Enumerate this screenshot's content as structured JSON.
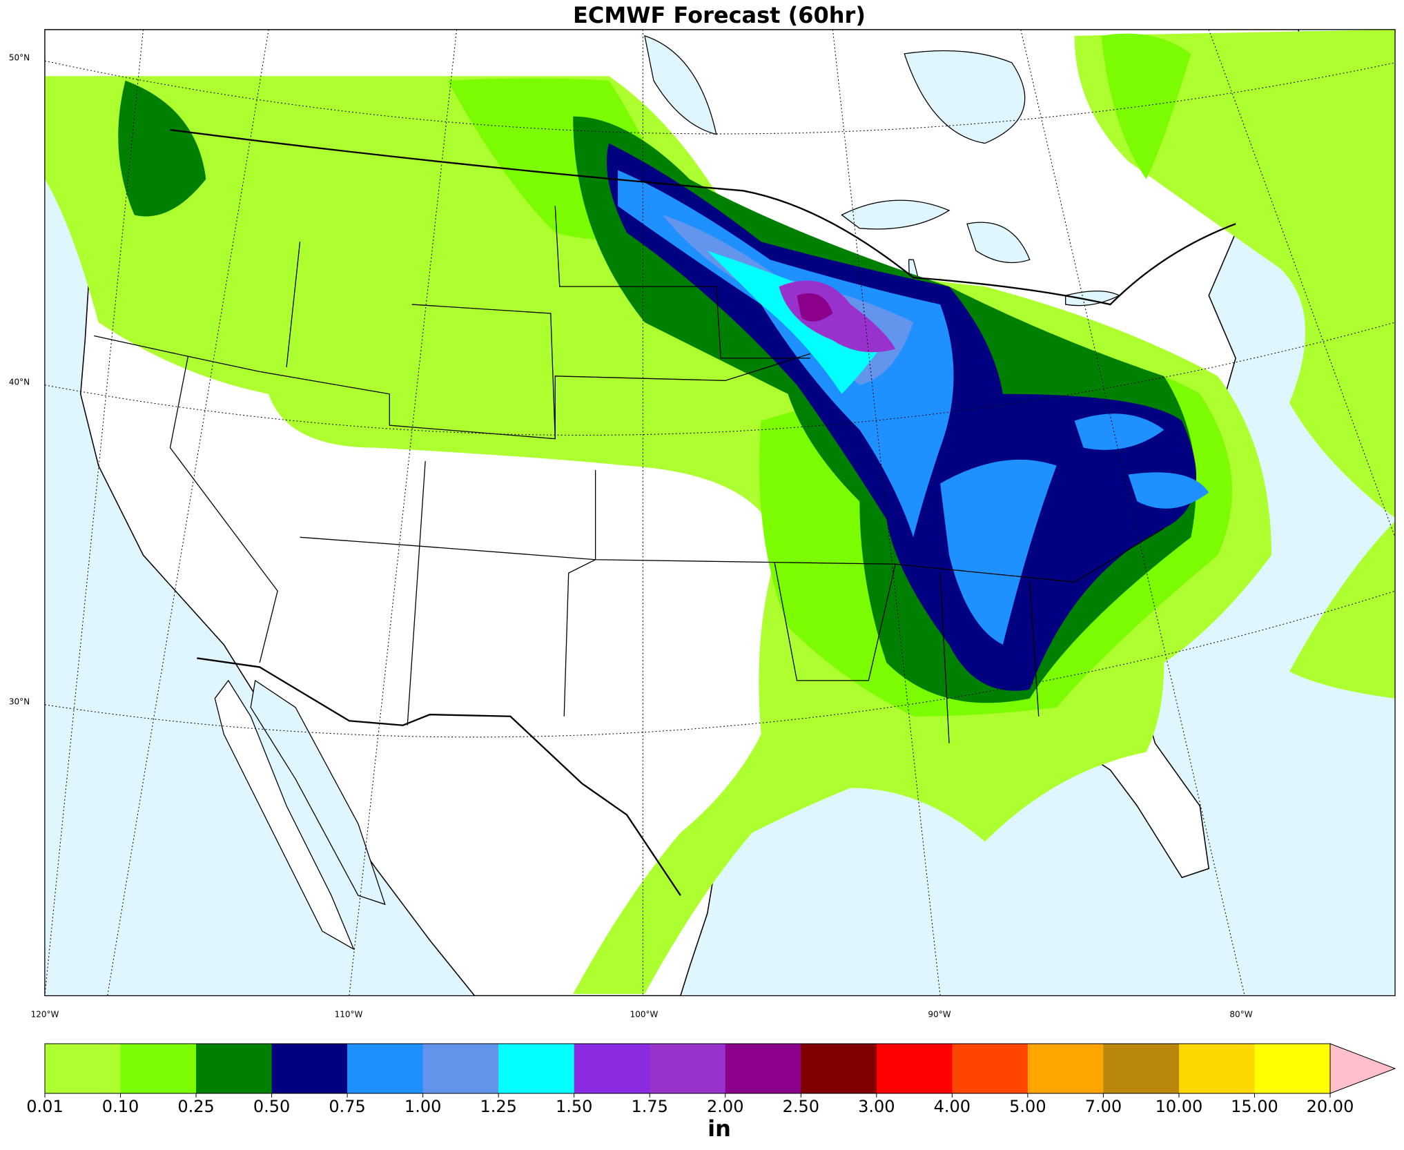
{
  "title": "ECMWF Forecast (60hr)",
  "map": {
    "lat_labels": [
      "50°N",
      "40°N",
      "30°N"
    ],
    "lon_labels": [
      "120°W",
      "110°W",
      "100°W",
      "90°W",
      "80°W"
    ]
  },
  "colorbar": {
    "ticks": [
      {
        "value": 0.01,
        "label": "0.01"
      },
      {
        "value": 0.1,
        "label": "0.10"
      },
      {
        "value": 0.25,
        "label": "0.25"
      },
      {
        "value": 0.5,
        "label": "0.50"
      },
      {
        "value": 0.75,
        "label": "0.75"
      },
      {
        "value": 1,
        "label": "1.00"
      },
      {
        "value": 1.25,
        "label": "1.25"
      },
      {
        "value": 1.5,
        "label": "1.50"
      },
      {
        "value": 1.75,
        "label": "1.75"
      },
      {
        "value": 2,
        "label": "2.00"
      },
      {
        "value": 2.5,
        "label": "2.50"
      },
      {
        "value": 3,
        "label": "3.00"
      },
      {
        "value": 4,
        "label": "4.00"
      },
      {
        "value": 5,
        "label": "5.00"
      },
      {
        "value": 7,
        "label": "7.00"
      },
      {
        "value": 10,
        "label": "10.00"
      },
      {
        "value": 15,
        "label": "15.00"
      },
      {
        "value": 20,
        "label": "20.00"
      }
    ],
    "colors": [
      "#adff2f",
      "#7cfc00",
      "#008000",
      "#000080",
      "#1e90ff",
      "#6495ed",
      "#00ffff",
      "#8a2be2",
      "#9932cc",
      "#8b008b",
      "#800000",
      "#ff0000",
      "#ff4500",
      "#ffa500",
      "#b8860b",
      "#ffd700",
      "#ffff00"
    ],
    "extend_color": "#ffc0cb",
    "label": "in"
  }
}
